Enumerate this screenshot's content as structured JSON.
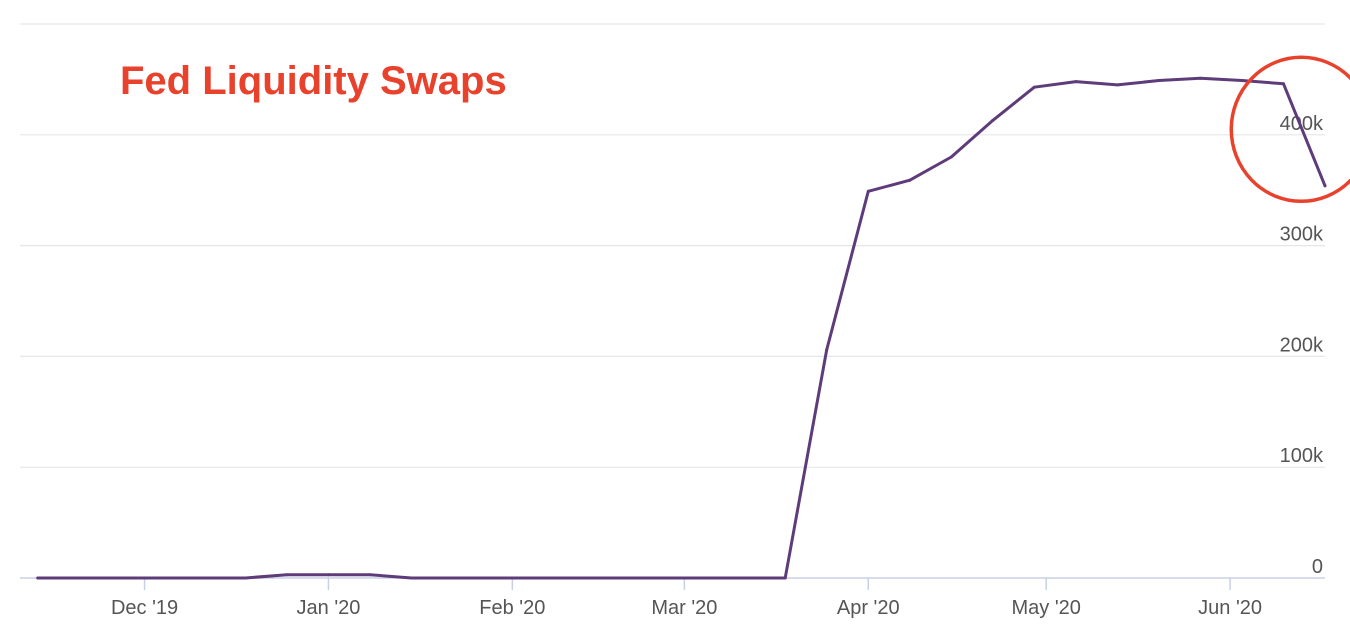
{
  "chart_data": {
    "type": "line",
    "title": "Fed Liquidity Swaps",
    "xlabel": "",
    "ylabel": "",
    "x_tick_labels": [
      "Dec '19",
      "Jan '20",
      "Feb '20",
      "Mar '20",
      "Apr '20",
      "May '20",
      "Jun '20"
    ],
    "x_tick_dates": [
      "2019-12-01",
      "2020-01-01",
      "2020-02-01",
      "2020-03-01",
      "2020-04-01",
      "2020-05-01",
      "2020-06-01"
    ],
    "y_tick_labels": [
      "0",
      "100k",
      "200k",
      "300k",
      "400k"
    ],
    "y_tick_values": [
      0,
      100000,
      200000,
      300000,
      400000
    ],
    "ylim": [
      0,
      500000
    ],
    "xlim": [
      "2019-11-10",
      "2020-06-17"
    ],
    "grid": true,
    "colors": {
      "title": "#e8412c",
      "line": "#5e3c7a",
      "highlight": "#e8412c"
    },
    "series": [
      {
        "x": [
          "2019-11-13",
          "2019-11-20",
          "2019-11-27",
          "2019-12-04",
          "2019-12-11",
          "2019-12-18",
          "2019-12-25",
          "2020-01-01",
          "2020-01-08",
          "2020-01-15",
          "2020-01-22",
          "2020-01-29",
          "2020-02-05",
          "2020-02-12",
          "2020-02-19",
          "2020-02-26",
          "2020-03-04",
          "2020-03-11",
          "2020-03-18",
          "2020-03-25",
          "2020-04-01",
          "2020-04-08",
          "2020-04-15",
          "2020-04-22",
          "2020-04-29",
          "2020-05-06",
          "2020-05-13",
          "2020-05-20",
          "2020-05-27",
          "2020-06-03",
          "2020-06-10",
          "2020-06-17"
        ],
        "values": [
          0,
          0,
          0,
          0,
          0,
          0,
          3000,
          3000,
          3000,
          0,
          0,
          0,
          0,
          0,
          0,
          0,
          0,
          0,
          0,
          206000,
          349000,
          359000,
          380000,
          413000,
          443000,
          448000,
          445000,
          449000,
          451000,
          449000,
          446000,
          354000
        ]
      }
    ],
    "annotations": [
      {
        "type": "circle",
        "description": "highlight",
        "x": "2020-06-13",
        "y": 405000
      }
    ]
  }
}
